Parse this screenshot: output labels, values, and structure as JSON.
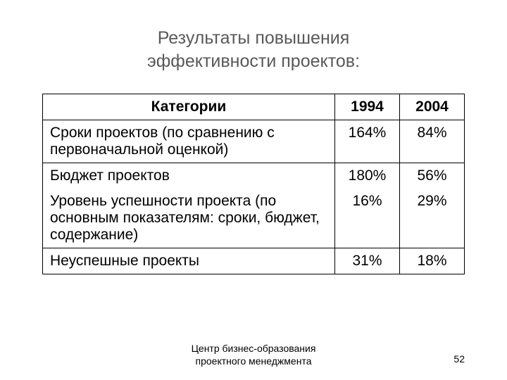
{
  "title_line1": "Результаты повышения",
  "title_line2": "эффективности проектов:",
  "table": {
    "header": {
      "category": "Категории",
      "col1": "1994",
      "col2": "2004"
    },
    "rows": [
      {
        "label": "Сроки проектов (по сравнению с первоначальной оценкой)",
        "v1": "164%",
        "v2": "84%"
      },
      {
        "label": "Бюджет проектов",
        "v1": "180%",
        "v2": "56%"
      },
      {
        "label": "Уровень успешности проекта  (по основным показателям: сроки, бюджет, содержание)",
        "v1": "16%",
        "v2": "29%"
      },
      {
        "label": "Неуспешные проекты",
        "v1": "31%",
        "v2": "18%"
      }
    ]
  },
  "footer_line1": "Центр бизнес-образования",
  "footer_line2": "проектного менеджмента",
  "page_number": "52",
  "colors": {
    "background": "#ffffff",
    "title_text": "#595959",
    "body_text": "#000000",
    "border": "#000000"
  },
  "typography": {
    "title_fontsize": 25,
    "table_fontsize": 21,
    "footer_fontsize": 14
  }
}
